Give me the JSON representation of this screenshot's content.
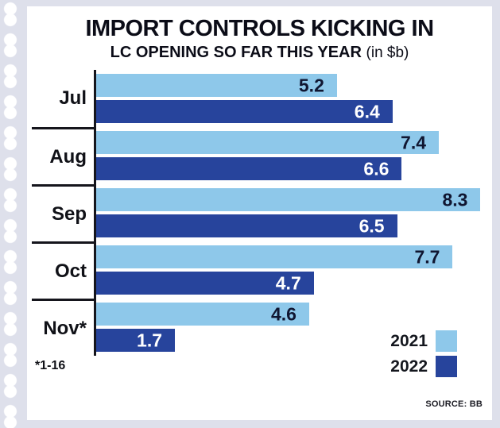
{
  "chart_data": {
    "type": "bar",
    "orientation": "horizontal",
    "title": "IMPORT CONTROLS KICKING IN",
    "subtitle": "LC OPENING SO FAR THIS YEAR",
    "subtitle_unit": "(in $b)",
    "categories": [
      "Jul",
      "Aug",
      "Sep",
      "Oct",
      "Nov*"
    ],
    "footnote": "*1-16",
    "xlim": [
      0,
      8.55
    ],
    "series": [
      {
        "name": "2021",
        "color": "#8ec8ea",
        "value_color": "#101631",
        "values": [
          5.2,
          7.4,
          8.3,
          7.7,
          4.6
        ]
      },
      {
        "name": "2022",
        "color": "#27449c",
        "value_color": "#ffffff",
        "values": [
          6.4,
          6.6,
          6.5,
          4.7,
          1.7
        ]
      }
    ],
    "legend_position": "bottom-right",
    "grid": false,
    "source": "SOURCE: BB",
    "background": "#ffffff",
    "frame_color": "#dee0eb"
  }
}
